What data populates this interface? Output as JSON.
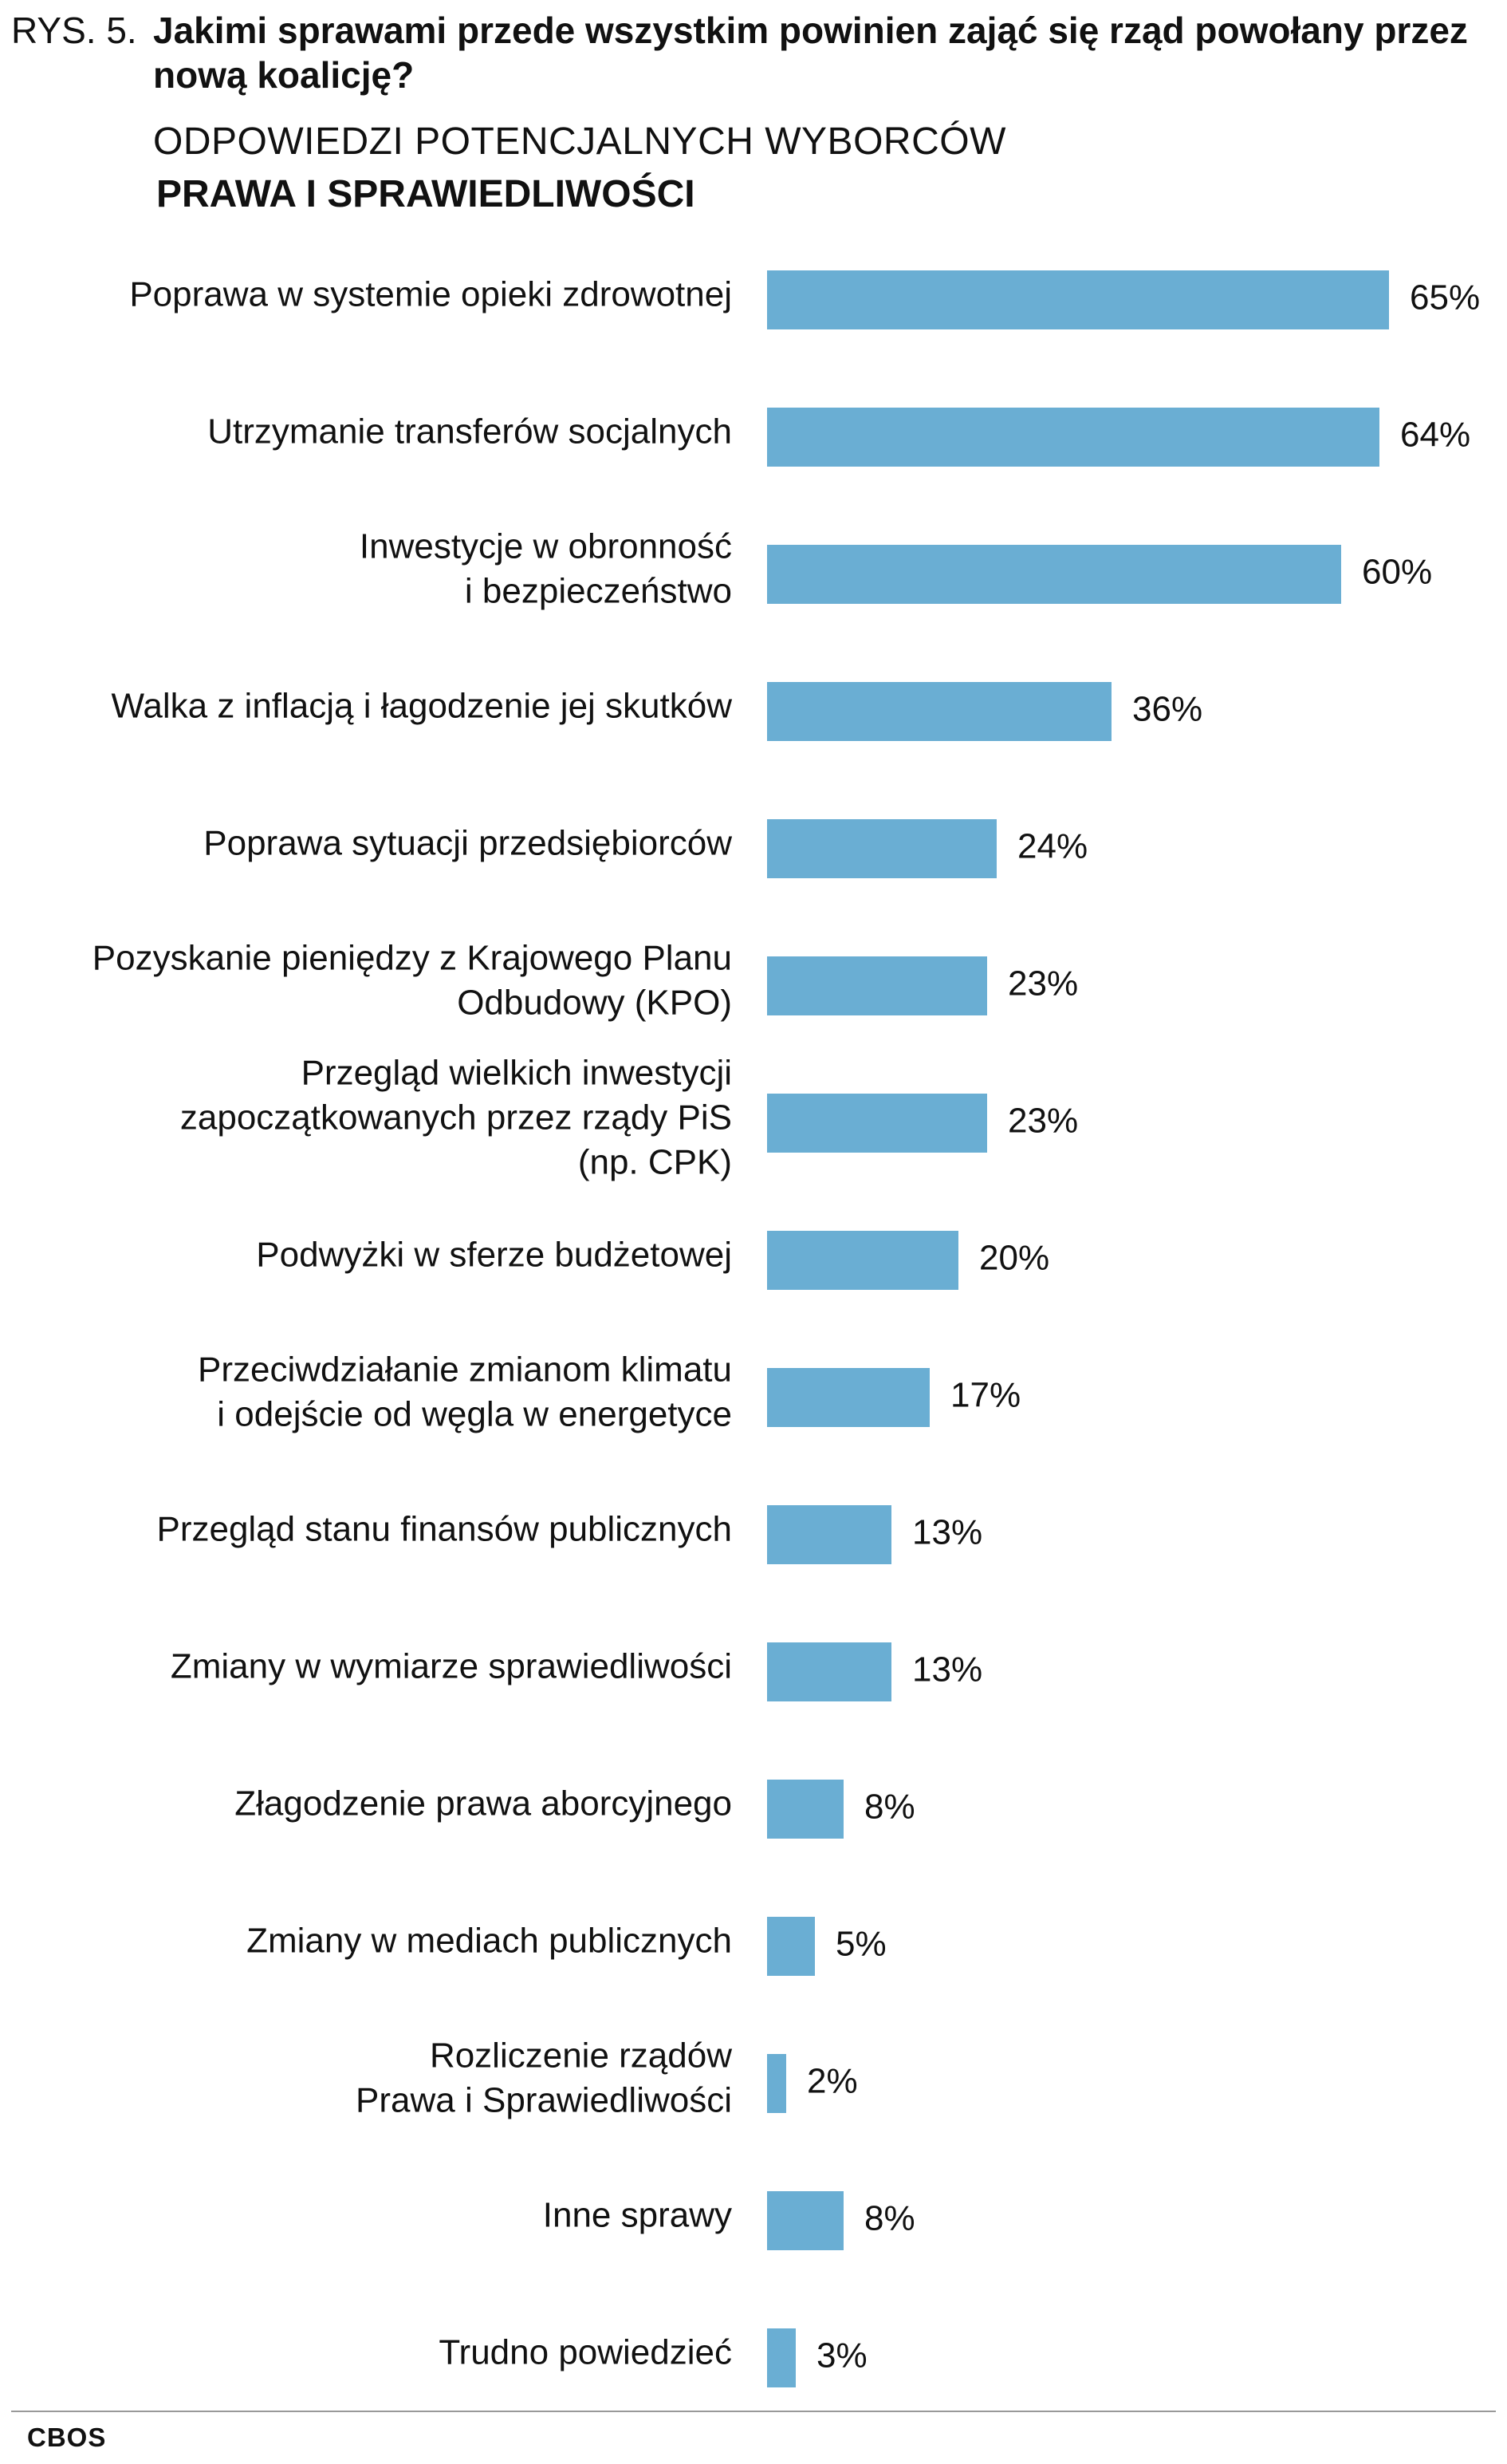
{
  "header": {
    "figure_label": "RYS. 5.",
    "title": "Jakimi sprawami przede wszystkim powinien zająć się rząd powołany przez nową koalicję?",
    "subtitle_line1": "ODPOWIEDZI POTENCJALNYCH WYBORCÓW",
    "subtitle_line2": "PRAWA I SPRAWIEDLIWOŚCI"
  },
  "footer": {
    "source": "CBOS"
  },
  "colors": {
    "bar": "#6aaed3",
    "text": "#111111",
    "rule": "#999999"
  },
  "chart_data": {
    "type": "bar",
    "orientation": "horizontal",
    "value_suffix": "%",
    "xlim": [
      0,
      65
    ],
    "grid": false,
    "legend": "none",
    "categories": [
      [
        "Poprawa w systemie opieki zdrowotnej"
      ],
      [
        "Utrzymanie transferów socjalnych"
      ],
      [
        "Inwestycje w obronność",
        "i bezpieczeństwo"
      ],
      [
        "Walka z inflacją i łagodzenie jej skutków"
      ],
      [
        "Poprawa sytuacji przedsiębiorców"
      ],
      [
        "Pozyskanie pieniędzy z Krajowego Planu",
        "Odbudowy (KPO)"
      ],
      [
        "Przegląd wielkich inwestycji",
        "zapoczątkowanych przez rządy PiS",
        "(np. CPK)"
      ],
      [
        "Podwyżki w sferze budżetowej"
      ],
      [
        "Przeciwdziałanie zmianom klimatu",
        "i odejście od węgla w energetyce"
      ],
      [
        "Przegląd stanu finansów publicznych"
      ],
      [
        "Zmiany w wymiarze sprawiedliwości"
      ],
      [
        "Złagodzenie prawa aborcyjnego"
      ],
      [
        "Zmiany w mediach publicznych"
      ],
      [
        "Rozliczenie rządów",
        "Prawa i Sprawiedliwości"
      ],
      [
        "Inne sprawy"
      ],
      [
        "Trudno powiedzieć"
      ]
    ],
    "values": [
      65,
      64,
      60,
      36,
      24,
      23,
      23,
      20,
      17,
      13,
      13,
      8,
      5,
      2,
      8,
      3
    ]
  }
}
